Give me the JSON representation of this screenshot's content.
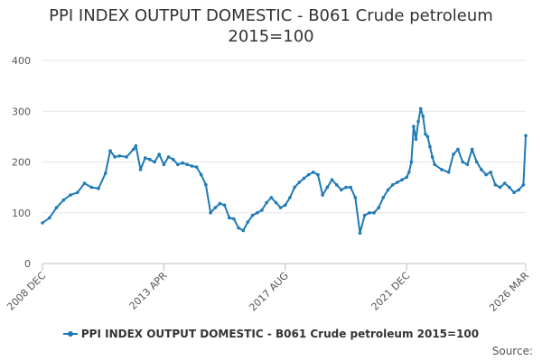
{
  "chart_data": {
    "type": "line",
    "title": "PPI INDEX OUTPUT DOMESTIC - B061 Crude petroleum",
    "subtitle": "2015=100",
    "xlabel": "",
    "ylabel": "",
    "x_start": "2008-12",
    "x_end": "2026-03",
    "x_ticks": [
      {
        "label": "2008 DEC",
        "date": "2008-12"
      },
      {
        "label": "2013 APR",
        "date": "2013-04"
      },
      {
        "label": "2017 AUG",
        "date": "2017-08"
      },
      {
        "label": "2021 DEC",
        "date": "2021-12"
      },
      {
        "label": "2026 MAR",
        "date": "2026-03"
      }
    ],
    "y_ticks": [
      0,
      100,
      200,
      300,
      400
    ],
    "ylim": [
      0,
      400
    ],
    "grid": true,
    "legend_position": "bottom",
    "color": "#1f7ab5",
    "series": [
      {
        "name": "PPI INDEX OUTPUT DOMESTIC - B061 Crude petroleum 2015=100",
        "points": [
          [
            "2008-12",
            80
          ],
          [
            "2009-03",
            90
          ],
          [
            "2009-06",
            110
          ],
          [
            "2009-09",
            125
          ],
          [
            "2009-12",
            135
          ],
          [
            "2010-03",
            140
          ],
          [
            "2010-06",
            158
          ],
          [
            "2010-09",
            150
          ],
          [
            "2010-12",
            148
          ],
          [
            "2011-03",
            178
          ],
          [
            "2011-05",
            222
          ],
          [
            "2011-07",
            210
          ],
          [
            "2011-09",
            212
          ],
          [
            "2011-12",
            210
          ],
          [
            "2012-03",
            225
          ],
          [
            "2012-04",
            232
          ],
          [
            "2012-06",
            185
          ],
          [
            "2012-08",
            208
          ],
          [
            "2012-10",
            205
          ],
          [
            "2012-12",
            200
          ],
          [
            "2013-02",
            215
          ],
          [
            "2013-04",
            195
          ],
          [
            "2013-06",
            210
          ],
          [
            "2013-08",
            205
          ],
          [
            "2013-10",
            195
          ],
          [
            "2013-12",
            198
          ],
          [
            "2014-02",
            195
          ],
          [
            "2014-04",
            192
          ],
          [
            "2014-06",
            190
          ],
          [
            "2014-08",
            175
          ],
          [
            "2014-10",
            155
          ],
          [
            "2014-12",
            100
          ],
          [
            "2015-02",
            110
          ],
          [
            "2015-04",
            118
          ],
          [
            "2015-06",
            115
          ],
          [
            "2015-08",
            90
          ],
          [
            "2015-10",
            88
          ],
          [
            "2015-12",
            70
          ],
          [
            "2016-02",
            65
          ],
          [
            "2016-04",
            82
          ],
          [
            "2016-06",
            95
          ],
          [
            "2016-08",
            100
          ],
          [
            "2016-10",
            105
          ],
          [
            "2016-12",
            120
          ],
          [
            "2017-02",
            130
          ],
          [
            "2017-04",
            120
          ],
          [
            "2017-06",
            110
          ],
          [
            "2017-08",
            115
          ],
          [
            "2017-10",
            130
          ],
          [
            "2017-12",
            150
          ],
          [
            "2018-02",
            160
          ],
          [
            "2018-04",
            168
          ],
          [
            "2018-06",
            175
          ],
          [
            "2018-08",
            180
          ],
          [
            "2018-10",
            175
          ],
          [
            "2018-12",
            135
          ],
          [
            "2019-02",
            150
          ],
          [
            "2019-04",
            165
          ],
          [
            "2019-06",
            155
          ],
          [
            "2019-08",
            145
          ],
          [
            "2019-10",
            150
          ],
          [
            "2019-12",
            150
          ],
          [
            "2020-02",
            130
          ],
          [
            "2020-04",
            60
          ],
          [
            "2020-06",
            95
          ],
          [
            "2020-08",
            100
          ],
          [
            "2020-10",
            100
          ],
          [
            "2020-12",
            110
          ],
          [
            "2021-02",
            130
          ],
          [
            "2021-04",
            145
          ],
          [
            "2021-06",
            155
          ],
          [
            "2021-08",
            160
          ],
          [
            "2021-10",
            165
          ],
          [
            "2021-12",
            170
          ],
          [
            "2022-01",
            180
          ],
          [
            "2022-02",
            200
          ],
          [
            "2022-03",
            270
          ],
          [
            "2022-04",
            245
          ],
          [
            "2022-05",
            280
          ],
          [
            "2022-06",
            305
          ],
          [
            "2022-07",
            290
          ],
          [
            "2022-08",
            255
          ],
          [
            "2022-09",
            250
          ],
          [
            "2022-10",
            230
          ],
          [
            "2022-11",
            210
          ],
          [
            "2022-12",
            195
          ],
          [
            "2023-03",
            185
          ],
          [
            "2023-06",
            180
          ],
          [
            "2023-08",
            215
          ],
          [
            "2023-10",
            225
          ],
          [
            "2023-12",
            200
          ],
          [
            "2024-02",
            195
          ],
          [
            "2024-04",
            225
          ],
          [
            "2024-06",
            200
          ],
          [
            "2024-08",
            185
          ],
          [
            "2024-10",
            175
          ],
          [
            "2024-12",
            180
          ],
          [
            "2025-02",
            155
          ],
          [
            "2025-04",
            150
          ],
          [
            "2025-06",
            158
          ],
          [
            "2025-08",
            150
          ],
          [
            "2025-10",
            140
          ],
          [
            "2025-12",
            145
          ],
          [
            "2026-02",
            155
          ],
          [
            "2026-03",
            252
          ]
        ]
      }
    ]
  },
  "credits": {
    "text": "Source:"
  }
}
